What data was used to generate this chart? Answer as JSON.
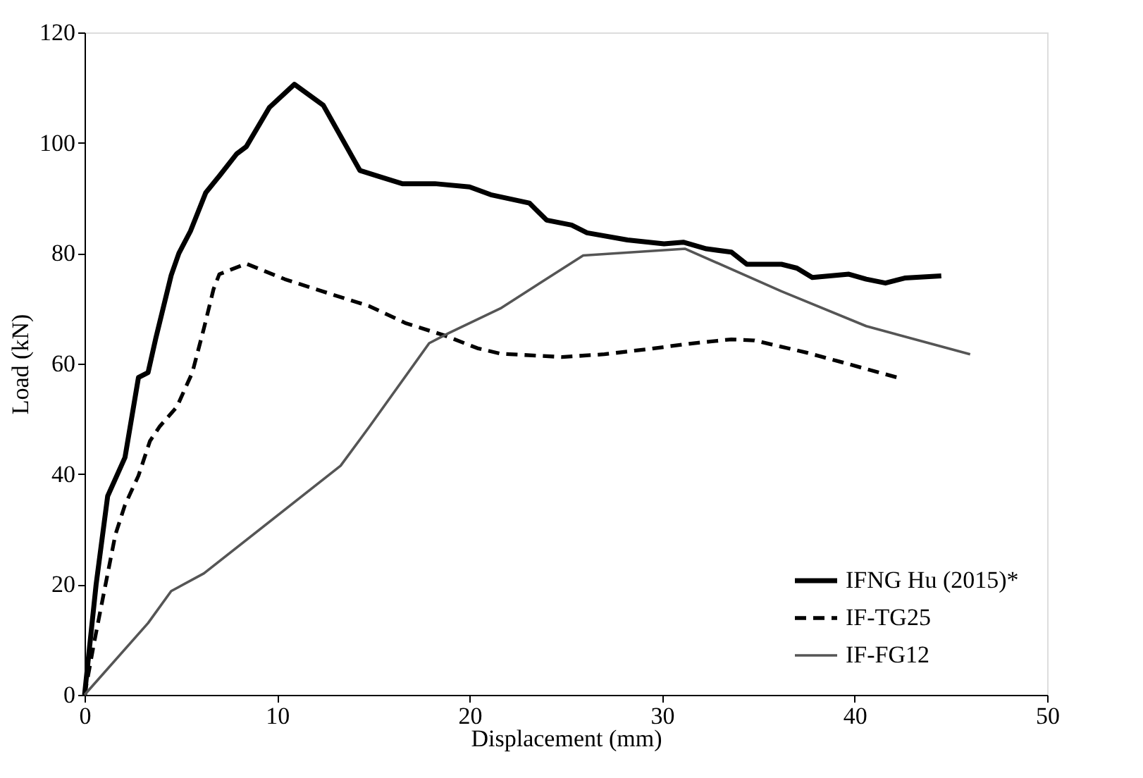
{
  "chart_data": {
    "type": "line",
    "xlabel": "Displacement (mm)",
    "ylabel": "Load (kN)",
    "xlim": [
      0,
      50
    ],
    "xticks": [
      0,
      10,
      20,
      30,
      40,
      50
    ],
    "ylim": [
      0,
      120
    ],
    "yticks": [
      0,
      20,
      40,
      60,
      80,
      100,
      120
    ],
    "grid": false,
    "legend": "bottom right",
    "marker": "none",
    "series": [
      {
        "name": "IFNG Hu (2015)*",
        "color": "#000000",
        "line_style": "solid",
        "x": [
          0,
          0.6,
          1.2,
          2.1,
          2.8,
          3.3,
          3.7,
          4.5,
          4.9,
          5.5,
          6.3,
          7,
          7.9,
          8.4,
          9.6,
          10.9,
          12.4,
          14.3,
          15.2,
          16.5,
          18.2,
          20,
          21.1,
          23.1,
          24.0,
          25.3,
          26.1,
          28.2,
          30.1,
          31.1,
          32.3,
          33.6,
          34.4,
          36.2,
          37,
          37.8,
          39.7,
          40.6,
          41.6,
          42.6,
          44.5
        ],
        "values": [
          0,
          20,
          36,
          43,
          57.5,
          58.4,
          64.6,
          76,
          80,
          84,
          91,
          94,
          98,
          99.3,
          106.4,
          110.6,
          106.8,
          95,
          94,
          92.6,
          92.6,
          92,
          90.6,
          89.1,
          86,
          85.1,
          83.7,
          82.4,
          81.7,
          82,
          80.8,
          80.2,
          78,
          78,
          77.3,
          75.6,
          76.2,
          75.3,
          74.6,
          75.5,
          75.9
        ]
      },
      {
        "name": "IF-TG25",
        "color": "#000000",
        "line_style": "dashed",
        "x": [
          0,
          0.5,
          1,
          1.6,
          2.1,
          2.8,
          3.4,
          3.9,
          4.8,
          5.6,
          6.2,
          6.7,
          7,
          8.4,
          10.4,
          12.8,
          14.8,
          16.7,
          18.7,
          20.4,
          21.6,
          24.8,
          27,
          29.2,
          31.4,
          33.6,
          34.8,
          37.5,
          39.6,
          42.2
        ],
        "values": [
          0,
          9.5,
          18.4,
          29,
          34.4,
          39.7,
          46,
          48.6,
          52.2,
          58.4,
          66.4,
          73.5,
          76.2,
          78.1,
          75.3,
          72.6,
          70.4,
          67.3,
          65.1,
          62.8,
          61.8,
          61.2,
          61.7,
          62.6,
          63.6,
          64.4,
          64.2,
          62,
          60,
          57.5
        ]
      },
      {
        "name": "IF-FG12",
        "color": "#555555",
        "line_style": "solid",
        "x": [
          0,
          3.3,
          4.5,
          6.2,
          13.3,
          14.8,
          17.9,
          18.9,
          21.6,
          25.9,
          31.2,
          36.2,
          40.6,
          46
        ],
        "values": [
          0,
          13,
          18.8,
          22,
          41.5,
          48.6,
          63.7,
          65.5,
          70,
          79.6,
          80.8,
          73.1,
          66.8,
          61.7
        ]
      }
    ]
  }
}
